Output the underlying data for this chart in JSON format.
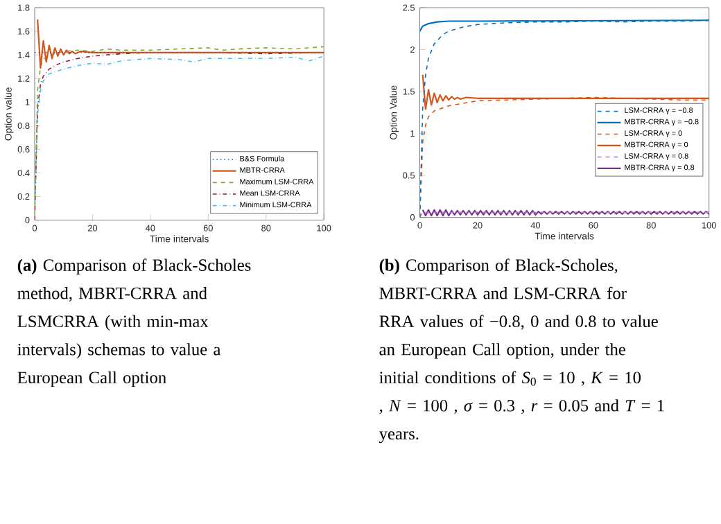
{
  "chart_data": [
    {
      "type": "line",
      "xlabel": "Time intervals",
      "ylabel": "Option value",
      "xlim": [
        0,
        100
      ],
      "ylim": [
        0,
        1.8
      ],
      "xticks": [
        0,
        20,
        40,
        60,
        80,
        100
      ],
      "yticks": [
        0,
        0.2,
        0.4,
        0.6,
        0.8,
        1,
        1.2,
        1.4,
        1.6,
        1.8
      ],
      "legend": "bottom right",
      "grid": false,
      "series": [
        {
          "name": "B&S Formula",
          "color": "#0072bd",
          "line_style": "dotted",
          "x": [
            0,
            100
          ],
          "values": [
            1.42,
            1.42
          ]
        },
        {
          "name": "MBTR-CRRA",
          "color": "#d95319",
          "line_style": "solid",
          "x": [
            1,
            2,
            3,
            4,
            5,
            6,
            7,
            8,
            9,
            10,
            11,
            12,
            13,
            14,
            16,
            20,
            40,
            60,
            80,
            100
          ],
          "values": [
            1.7,
            1.29,
            1.52,
            1.34,
            1.48,
            1.37,
            1.46,
            1.39,
            1.45,
            1.4,
            1.44,
            1.41,
            1.43,
            1.41,
            1.43,
            1.42,
            1.42,
            1.42,
            1.42,
            1.42
          ]
        },
        {
          "name": "Maximum LSM-CRRA",
          "color": "#77ac30",
          "line_style": "dashed",
          "x": [
            0,
            1,
            2,
            3,
            5,
            10,
            15,
            20,
            25,
            30,
            40,
            50,
            60,
            65,
            70,
            80,
            90,
            100
          ],
          "values": [
            0.05,
            1.1,
            1.3,
            1.36,
            1.4,
            1.43,
            1.44,
            1.43,
            1.45,
            1.44,
            1.44,
            1.45,
            1.46,
            1.44,
            1.45,
            1.46,
            1.45,
            1.47
          ]
        },
        {
          "name": "Mean LSM-CRRA",
          "color": "#a2142f",
          "line_style": "dashdotted",
          "x": [
            0,
            1,
            2,
            3,
            5,
            8,
            10,
            15,
            20,
            30,
            40,
            60,
            80,
            100
          ],
          "values": [
            0,
            0.95,
            1.15,
            1.22,
            1.28,
            1.32,
            1.34,
            1.37,
            1.39,
            1.41,
            1.42,
            1.42,
            1.41,
            1.42
          ]
        },
        {
          "name": "Minimum LSM-CRRA",
          "color": "#4dbeee",
          "line_style": "dashdotted",
          "x": [
            0,
            1,
            2,
            3,
            5,
            10,
            15,
            20,
            25,
            30,
            40,
            50,
            55,
            60,
            70,
            80,
            90,
            95,
            100
          ],
          "values": [
            0.05,
            0.9,
            1.1,
            1.18,
            1.24,
            1.28,
            1.31,
            1.33,
            1.32,
            1.35,
            1.37,
            1.36,
            1.34,
            1.37,
            1.37,
            1.37,
            1.38,
            1.35,
            1.39
          ]
        }
      ],
      "annotations": [
        "**(a)** Comparison of Black-Scholes method, MBRT-CRRA and LSMCRRA (with min-max intervals) schemas to value a European Call option"
      ]
    },
    {
      "type": "line",
      "xlabel": "Time intervals",
      "ylabel": "Option Value",
      "xlim": [
        0,
        100
      ],
      "ylim": [
        0,
        2.5
      ],
      "xticks": [
        0,
        20,
        40,
        60,
        80,
        100
      ],
      "yticks": [
        0,
        0.5,
        1,
        1.5,
        2,
        2.5
      ],
      "legend": "right",
      "grid": false,
      "series": [
        {
          "name": "LSM-CRRA γ = −0.8",
          "color": "#0072bd",
          "line_style": "dashed",
          "x": [
            0,
            1,
            2,
            3,
            5,
            8,
            10,
            15,
            20,
            30,
            40,
            50,
            60,
            70,
            80,
            90,
            100
          ],
          "values": [
            0,
            1.3,
            1.7,
            1.9,
            2.07,
            2.18,
            2.22,
            2.27,
            2.3,
            2.32,
            2.33,
            2.33,
            2.34,
            2.33,
            2.34,
            2.34,
            2.35
          ]
        },
        {
          "name": "MBTR-CRRA γ = −0.8",
          "color": "#0072bd",
          "line_style": "solid",
          "x": [
            0,
            1,
            3,
            6,
            10,
            20,
            100
          ],
          "values": [
            2.22,
            2.28,
            2.31,
            2.33,
            2.34,
            2.34,
            2.35
          ]
        },
        {
          "name": "LSM-CRRA γ = 0",
          "color": "#d95319",
          "line_style": "dashed",
          "x": [
            0,
            1,
            2,
            3,
            5,
            10,
            20,
            30,
            40,
            50,
            60,
            70,
            80,
            90,
            100
          ],
          "values": [
            0,
            0.9,
            1.1,
            1.2,
            1.27,
            1.33,
            1.39,
            1.4,
            1.41,
            1.42,
            1.43,
            1.42,
            1.41,
            1.4,
            1.4
          ]
        },
        {
          "name": "MBTR-CRRA γ = 0",
          "color": "#d95319",
          "line_style": "solid",
          "x": [
            1,
            2,
            3,
            4,
            5,
            6,
            7,
            8,
            9,
            10,
            11,
            12,
            13,
            14,
            16,
            20,
            40,
            60,
            80,
            100
          ],
          "values": [
            1.7,
            1.29,
            1.52,
            1.34,
            1.48,
            1.37,
            1.46,
            1.39,
            1.45,
            1.4,
            1.44,
            1.41,
            1.43,
            1.41,
            1.43,
            1.42,
            1.42,
            1.42,
            1.42,
            1.42
          ]
        },
        {
          "name": "LSM-CRRA γ = 0.8",
          "color": "#a77cc4",
          "line_style": "dashed",
          "x": [
            0,
            1,
            2,
            5,
            10,
            40,
            100
          ],
          "values": [
            0,
            0.06,
            0.06,
            0.06,
            0.06,
            0.06,
            0.06
          ]
        },
        {
          "name": "MBTR-CRRA γ = 0.8",
          "color": "#7e2f8e",
          "line_style": "solid",
          "x": [
            1,
            2,
            3,
            4,
            5,
            6,
            7,
            8,
            9,
            10,
            11,
            12,
            13,
            14,
            15,
            16,
            17,
            18,
            19,
            20,
            21,
            22,
            23,
            24,
            25,
            26,
            27,
            28,
            29,
            30,
            31,
            32,
            33,
            34,
            35,
            36,
            37,
            38,
            39,
            40,
            41,
            42,
            43,
            44,
            45,
            46,
            47,
            48,
            49,
            50,
            51,
            52,
            53,
            54,
            55,
            56,
            57,
            58,
            59,
            60,
            61,
            62,
            63,
            64,
            65,
            66,
            67,
            68,
            69,
            70,
            71,
            72,
            73,
            74,
            75,
            76,
            77,
            78,
            79,
            80,
            81,
            82,
            83,
            84,
            85,
            86,
            87,
            88,
            89,
            90,
            91,
            92,
            93,
            94,
            95,
            96,
            97,
            98,
            99,
            100
          ],
          "values": [
            0.09,
            0.02,
            0.09,
            0.02,
            0.09,
            0.02,
            0.09,
            0.02,
            0.09,
            0.02,
            0.08,
            0.03,
            0.08,
            0.03,
            0.08,
            0.03,
            0.08,
            0.03,
            0.08,
            0.03,
            0.08,
            0.03,
            0.08,
            0.03,
            0.08,
            0.03,
            0.08,
            0.03,
            0.08,
            0.03,
            0.08,
            0.03,
            0.08,
            0.03,
            0.08,
            0.03,
            0.08,
            0.03,
            0.08,
            0.03,
            0.07,
            0.04,
            0.07,
            0.04,
            0.07,
            0.04,
            0.07,
            0.04,
            0.07,
            0.04,
            0.07,
            0.04,
            0.07,
            0.04,
            0.07,
            0.04,
            0.07,
            0.04,
            0.07,
            0.04,
            0.07,
            0.04,
            0.07,
            0.04,
            0.07,
            0.04,
            0.07,
            0.04,
            0.07,
            0.04,
            0.07,
            0.04,
            0.07,
            0.04,
            0.07,
            0.04,
            0.07,
            0.04,
            0.07,
            0.04,
            0.07,
            0.04,
            0.07,
            0.04,
            0.07,
            0.04,
            0.07,
            0.04,
            0.07,
            0.04,
            0.07,
            0.04,
            0.07,
            0.04,
            0.07,
            0.04,
            0.07,
            0.04,
            0.07,
            0.04
          ]
        }
      ],
      "annotations": [
        "**(b)** Comparison of Black-Scholes, MBRT-CRRA and LSM-CRRA for RRA values of −0.8, 0 and 0.8 to value an European Call option, under the initial conditions of *S*$_{0}$ = 10 , *K* = 10 , *N* = 100 , *σ* = 0.3 , *r* = 0.05 and *T* = 1 years."
      ]
    }
  ]
}
